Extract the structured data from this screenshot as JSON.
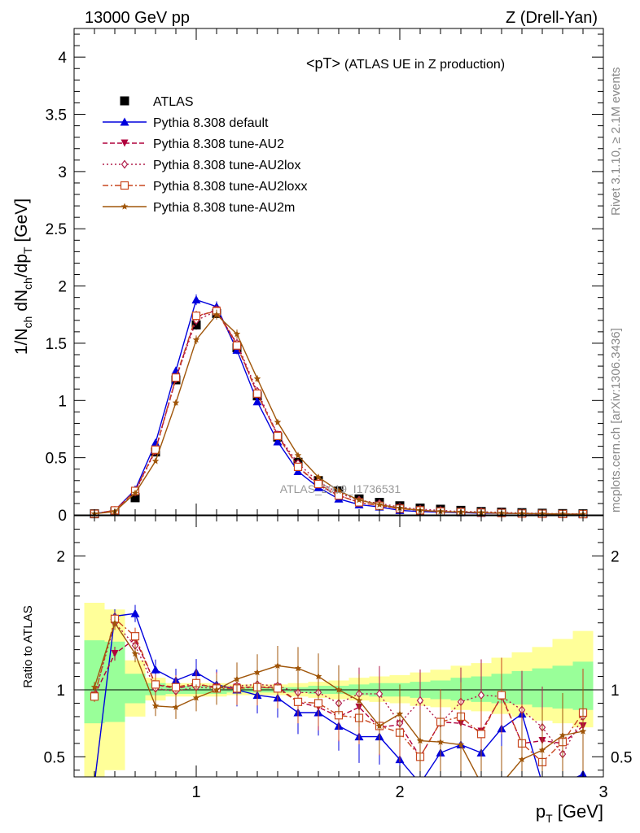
{
  "header": {
    "left": "13000 GeV pp",
    "right": "Z (Drell-Yan)"
  },
  "side_text": {
    "rivet": "Rivet 3.1.10, ≥ 2.1M events",
    "mcplots": "mcplots.cern.ch [arXiv:1306.3436]"
  },
  "watermark": "ATLAS_2019_I1736531",
  "chart_data": [
    {
      "type": "line",
      "title": "<pT> (ATLAS UE in Z production)",
      "title_main": "<pT>",
      "title_sub": "(ATLAS UE in Z production)",
      "ylabel": "1/N_ch dN_ch/dp_T [GeV]",
      "xlim": [
        0.4,
        3.0
      ],
      "ylim": [
        0,
        4.25
      ],
      "yticks": [
        "0",
        "0.5",
        "1",
        "1.5",
        "2",
        "2.5",
        "3",
        "3.5",
        "4"
      ],
      "legend_position": "top-left",
      "x": [
        0.5,
        0.6,
        0.7,
        0.8,
        0.9,
        1.0,
        1.1,
        1.2,
        1.3,
        1.4,
        1.5,
        1.6,
        1.7,
        1.8,
        1.9,
        2.0,
        2.1,
        2.2,
        2.3,
        2.4,
        2.5,
        2.6,
        2.7,
        2.8,
        2.9
      ],
      "series": [
        {
          "name": "ATLAS",
          "color": "#000000",
          "marker": "square",
          "style": "none",
          "values": [
            0.01,
            0.03,
            0.15,
            0.55,
            1.18,
            1.66,
            1.76,
            1.46,
            1.04,
            0.68,
            0.46,
            0.3,
            0.21,
            0.14,
            0.11,
            0.08,
            0.06,
            0.05,
            0.04,
            0.03,
            0.025,
            0.02,
            0.015,
            0.012,
            0.01
          ]
        },
        {
          "name": "Pythia 8.308 default",
          "color": "#0000dd",
          "marker": "triangle-up",
          "style": "solid",
          "values": [
            0.01,
            0.04,
            0.22,
            0.63,
            1.26,
            1.88,
            1.82,
            1.44,
            0.99,
            0.64,
            0.38,
            0.24,
            0.14,
            0.09,
            0.07,
            0.04,
            0.03,
            0.025,
            0.02,
            0.015,
            0.015,
            0.012,
            0.01,
            0.008,
            0.005
          ]
        },
        {
          "name": "Pythia 8.308 tune-AU2",
          "color": "#b0003c",
          "marker": "triangle-down",
          "style": "dashed",
          "values": [
            0.01,
            0.04,
            0.21,
            0.57,
            1.19,
            1.73,
            1.79,
            1.49,
            1.06,
            0.7,
            0.42,
            0.26,
            0.17,
            0.11,
            0.08,
            0.06,
            0.04,
            0.03,
            0.025,
            0.02,
            0.015,
            0.012,
            0.01,
            0.008,
            0.007
          ]
        },
        {
          "name": "Pythia 8.308 tune-AU2lox",
          "color": "#b01e4b",
          "marker": "diamond-open",
          "style": "dotted",
          "values": [
            0.01,
            0.04,
            0.2,
            0.56,
            1.19,
            1.7,
            1.78,
            1.5,
            1.08,
            0.7,
            0.45,
            0.29,
            0.19,
            0.13,
            0.1,
            0.07,
            0.05,
            0.04,
            0.03,
            0.028,
            0.022,
            0.017,
            0.013,
            0.01,
            0.008
          ]
        },
        {
          "name": "Pythia 8.308 tune-AU2loxx",
          "color": "#c8461e",
          "marker": "square-open",
          "style": "dashdot",
          "values": [
            0.01,
            0.04,
            0.21,
            0.57,
            1.2,
            1.74,
            1.78,
            1.48,
            1.06,
            0.69,
            0.42,
            0.27,
            0.17,
            0.11,
            0.08,
            0.055,
            0.04,
            0.03,
            0.025,
            0.02,
            0.017,
            0.012,
            0.01,
            0.008,
            0.007
          ]
        },
        {
          "name": "Pythia 8.308 tune-AU2m",
          "color": "#a0560a",
          "marker": "star",
          "style": "solid",
          "values": [
            0.01,
            0.03,
            0.19,
            0.47,
            0.98,
            1.53,
            1.75,
            1.58,
            1.19,
            0.81,
            0.52,
            0.33,
            0.21,
            0.13,
            0.09,
            0.06,
            0.04,
            0.03,
            0.025,
            0.02,
            0.015,
            0.012,
            0.01,
            0.008,
            0.006
          ]
        }
      ]
    },
    {
      "type": "line",
      "ylabel": "Ratio to ATLAS",
      "xlabel": "p_T [GeV]",
      "xlim": [
        0.4,
        3.0
      ],
      "ylim": [
        0.35,
        2.3
      ],
      "yticks": [
        "0.5",
        "1",
        "2"
      ],
      "xticks": [
        "1",
        "2",
        "3"
      ],
      "reference_line": 1,
      "bins": [
        0.45,
        0.55,
        0.65,
        0.75,
        0.85,
        0.95,
        1.05,
        1.15,
        1.25,
        1.35,
        1.45,
        1.55,
        1.65,
        1.75,
        1.85,
        1.95,
        2.05,
        2.15,
        2.25,
        2.35,
        2.45,
        2.55,
        2.65,
        2.75,
        2.85,
        2.95
      ],
      "band_green": {
        "low": [
          0.75,
          0.76,
          0.9,
          0.96,
          0.97,
          0.97,
          0.97,
          0.98,
          0.98,
          0.98,
          0.98,
          0.97,
          0.97,
          0.96,
          0.95,
          0.95,
          0.94,
          0.93,
          0.92,
          0.91,
          0.9,
          0.89,
          0.87,
          0.86,
          0.85
        ],
        "high": [
          1.37,
          1.36,
          1.12,
          1.05,
          1.03,
          1.03,
          1.03,
          1.02,
          1.02,
          1.02,
          1.02,
          1.03,
          1.03,
          1.04,
          1.05,
          1.05,
          1.06,
          1.07,
          1.09,
          1.1,
          1.12,
          1.14,
          1.16,
          1.18,
          1.21
        ]
      },
      "band_yellow": {
        "low": [
          0.35,
          0.4,
          0.8,
          0.92,
          0.95,
          0.95,
          0.95,
          0.96,
          0.96,
          0.96,
          0.95,
          0.94,
          0.93,
          0.92,
          0.91,
          0.9,
          0.88,
          0.87,
          0.85,
          0.84,
          0.82,
          0.8,
          0.77,
          0.75,
          0.72
        ],
        "high": [
          1.65,
          1.6,
          1.22,
          1.09,
          1.05,
          1.05,
          1.05,
          1.04,
          1.04,
          1.04,
          1.05,
          1.06,
          1.07,
          1.09,
          1.1,
          1.11,
          1.13,
          1.15,
          1.18,
          1.2,
          1.24,
          1.28,
          1.32,
          1.38,
          1.44
        ]
      },
      "x": [
        0.5,
        0.6,
        0.7,
        0.8,
        0.9,
        1.0,
        1.1,
        1.2,
        1.3,
        1.4,
        1.5,
        1.6,
        1.7,
        1.8,
        1.9,
        2.0,
        2.1,
        2.2,
        2.3,
        2.4,
        2.5,
        2.6,
        2.7,
        2.8,
        2.9
      ],
      "series": [
        {
          "name": "Pythia 8.308 default",
          "color": "#0000dd",
          "marker": "triangle-up",
          "style": "solid",
          "values": [
            0.3,
            1.55,
            1.57,
            1.15,
            1.07,
            1.13,
            1.04,
            1.0,
            0.96,
            0.94,
            0.83,
            0.83,
            0.73,
            0.65,
            0.65,
            0.48,
            0.3,
            0.53,
            0.59,
            0.53,
            0.71,
            0.82,
            0.3,
            0.3,
            0.37
          ]
        },
        {
          "name": "Pythia 8.308 tune-AU2",
          "color": "#b0003c",
          "marker": "triangle-down",
          "style": "dashed",
          "values": [
            0.96,
            1.27,
            1.38,
            1.04,
            1.01,
            1.04,
            1.02,
            1.02,
            1.02,
            1.02,
            0.91,
            0.87,
            0.8,
            0.87,
            0.72,
            0.74,
            0.5,
            0.76,
            0.75,
            0.69,
            0.95,
            0.6,
            0.62,
            0.6,
            0.73
          ]
        },
        {
          "name": "Pythia 8.308 tune-AU2lox",
          "color": "#b01e4b",
          "marker": "diamond-open",
          "style": "dotted",
          "values": [
            0.96,
            1.5,
            1.33,
            1.01,
            0.99,
            1.02,
            1.01,
            1.03,
            1.04,
            1.03,
            0.98,
            0.98,
            0.9,
            0.97,
            0.97,
            0.75,
            0.92,
            0.75,
            0.91,
            0.96,
            0.95,
            0.85,
            0.72,
            0.52,
            0.8
          ]
        },
        {
          "name": "Pythia 8.308 tune-AU2loxx",
          "color": "#c8461e",
          "marker": "square-open",
          "style": "dashdot",
          "values": [
            0.95,
            1.53,
            1.4,
            1.04,
            1.02,
            1.05,
            1.01,
            1.01,
            1.02,
            1.01,
            0.91,
            0.9,
            0.81,
            0.79,
            0.73,
            0.68,
            0.5,
            0.76,
            0.8,
            0.67,
            0.96,
            0.6,
            0.46,
            0.61,
            0.83
          ]
        },
        {
          "name": "Pythia 8.308 tune-AU2m",
          "color": "#a0560a",
          "marker": "star",
          "style": "solid",
          "values": [
            1.02,
            1.5,
            1.27,
            0.88,
            0.87,
            0.94,
            1.0,
            1.08,
            1.13,
            1.18,
            1.16,
            1.1,
            1.0,
            0.92,
            0.73,
            0.82,
            0.62,
            0.61,
            0.59,
            0.3,
            0.3,
            0.48,
            0.55,
            0.66,
            0.69
          ]
        }
      ]
    }
  ]
}
